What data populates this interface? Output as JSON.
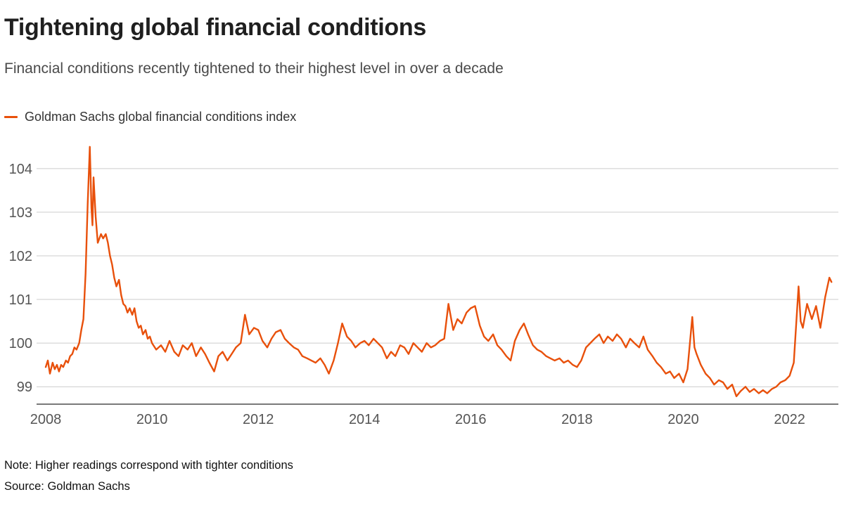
{
  "footer": {
    "note": "Note: Higher readings correspond with tighter conditions",
    "source": "Source: Goldman Sachs"
  },
  "chart_data": {
    "type": "line",
    "title": "Tightening global financial conditions",
    "subtitle": "Financial conditions recently tightened to their highest level in over a decade",
    "xlabel": "",
    "ylabel": "",
    "x_ticks": [
      2008,
      2010,
      2012,
      2014,
      2016,
      2018,
      2020,
      2022
    ],
    "y_ticks": [
      99,
      100,
      101,
      102,
      103,
      104
    ],
    "x_range": [
      2008,
      2022.8
    ],
    "y_range": [
      98.6,
      104.61
    ],
    "grid": "horizontal",
    "legend_position": "top-left",
    "colors": {
      "line": "#e8500b",
      "grid": "#cccccc",
      "tick": "#555555",
      "axis": "#4d4d4d"
    },
    "series": [
      {
        "name": "Goldman Sachs global financial conditions index",
        "color": "#e8500b",
        "points": [
          [
            2008.0,
            99.45
          ],
          [
            2008.04,
            99.6
          ],
          [
            2008.08,
            99.3
          ],
          [
            2008.13,
            99.55
          ],
          [
            2008.17,
            99.4
          ],
          [
            2008.21,
            99.5
          ],
          [
            2008.25,
            99.35
          ],
          [
            2008.29,
            99.5
          ],
          [
            2008.33,
            99.45
          ],
          [
            2008.38,
            99.6
          ],
          [
            2008.42,
            99.55
          ],
          [
            2008.46,
            99.7
          ],
          [
            2008.5,
            99.75
          ],
          [
            2008.54,
            99.9
          ],
          [
            2008.58,
            99.85
          ],
          [
            2008.63,
            100.0
          ],
          [
            2008.67,
            100.3
          ],
          [
            2008.71,
            100.55
          ],
          [
            2008.75,
            101.6
          ],
          [
            2008.79,
            103.2
          ],
          [
            2008.83,
            104.5
          ],
          [
            2008.86,
            103.1
          ],
          [
            2008.88,
            102.7
          ],
          [
            2008.9,
            103.8
          ],
          [
            2008.94,
            102.9
          ],
          [
            2008.98,
            102.3
          ],
          [
            2009.04,
            102.5
          ],
          [
            2009.08,
            102.4
          ],
          [
            2009.13,
            102.5
          ],
          [
            2009.17,
            102.3
          ],
          [
            2009.21,
            102.0
          ],
          [
            2009.25,
            101.8
          ],
          [
            2009.29,
            101.5
          ],
          [
            2009.33,
            101.3
          ],
          [
            2009.38,
            101.45
          ],
          [
            2009.42,
            101.1
          ],
          [
            2009.46,
            100.9
          ],
          [
            2009.5,
            100.85
          ],
          [
            2009.54,
            100.7
          ],
          [
            2009.58,
            100.8
          ],
          [
            2009.63,
            100.65
          ],
          [
            2009.67,
            100.8
          ],
          [
            2009.71,
            100.5
          ],
          [
            2009.75,
            100.35
          ],
          [
            2009.79,
            100.4
          ],
          [
            2009.83,
            100.2
          ],
          [
            2009.88,
            100.3
          ],
          [
            2009.92,
            100.1
          ],
          [
            2009.96,
            100.15
          ],
          [
            2010.0,
            100.0
          ],
          [
            2010.08,
            99.85
          ],
          [
            2010.17,
            99.95
          ],
          [
            2010.25,
            99.8
          ],
          [
            2010.33,
            100.05
          ],
          [
            2010.42,
            99.8
          ],
          [
            2010.5,
            99.7
          ],
          [
            2010.58,
            99.95
          ],
          [
            2010.67,
            99.85
          ],
          [
            2010.75,
            100.0
          ],
          [
            2010.83,
            99.7
          ],
          [
            2010.92,
            99.9
          ],
          [
            2011.0,
            99.75
          ],
          [
            2011.08,
            99.55
          ],
          [
            2011.17,
            99.35
          ],
          [
            2011.25,
            99.7
          ],
          [
            2011.33,
            99.8
          ],
          [
            2011.42,
            99.6
          ],
          [
            2011.5,
            99.75
          ],
          [
            2011.58,
            99.9
          ],
          [
            2011.67,
            100.0
          ],
          [
            2011.75,
            100.65
          ],
          [
            2011.83,
            100.2
          ],
          [
            2011.92,
            100.35
          ],
          [
            2012.0,
            100.3
          ],
          [
            2012.08,
            100.05
          ],
          [
            2012.17,
            99.9
          ],
          [
            2012.25,
            100.1
          ],
          [
            2012.33,
            100.25
          ],
          [
            2012.42,
            100.3
          ],
          [
            2012.5,
            100.1
          ],
          [
            2012.58,
            100.0
          ],
          [
            2012.67,
            99.9
          ],
          [
            2012.75,
            99.85
          ],
          [
            2012.83,
            99.7
          ],
          [
            2012.92,
            99.65
          ],
          [
            2013.0,
            99.6
          ],
          [
            2013.08,
            99.55
          ],
          [
            2013.17,
            99.65
          ],
          [
            2013.25,
            99.5
          ],
          [
            2013.33,
            99.3
          ],
          [
            2013.42,
            99.6
          ],
          [
            2013.5,
            100.0
          ],
          [
            2013.58,
            100.45
          ],
          [
            2013.67,
            100.15
          ],
          [
            2013.75,
            100.05
          ],
          [
            2013.83,
            99.9
          ],
          [
            2013.92,
            100.0
          ],
          [
            2014.0,
            100.05
          ],
          [
            2014.08,
            99.95
          ],
          [
            2014.17,
            100.1
          ],
          [
            2014.25,
            100.0
          ],
          [
            2014.33,
            99.9
          ],
          [
            2014.42,
            99.65
          ],
          [
            2014.5,
            99.8
          ],
          [
            2014.58,
            99.7
          ],
          [
            2014.67,
            99.95
          ],
          [
            2014.75,
            99.9
          ],
          [
            2014.83,
            99.75
          ],
          [
            2014.92,
            100.0
          ],
          [
            2015.0,
            99.9
          ],
          [
            2015.08,
            99.8
          ],
          [
            2015.17,
            100.0
          ],
          [
            2015.25,
            99.9
          ],
          [
            2015.33,
            99.95
          ],
          [
            2015.42,
            100.05
          ],
          [
            2015.5,
            100.1
          ],
          [
            2015.58,
            100.9
          ],
          [
            2015.67,
            100.3
          ],
          [
            2015.75,
            100.55
          ],
          [
            2015.83,
            100.45
          ],
          [
            2015.92,
            100.7
          ],
          [
            2016.0,
            100.8
          ],
          [
            2016.08,
            100.85
          ],
          [
            2016.17,
            100.4
          ],
          [
            2016.25,
            100.15
          ],
          [
            2016.33,
            100.05
          ],
          [
            2016.42,
            100.2
          ],
          [
            2016.5,
            99.95
          ],
          [
            2016.58,
            99.85
          ],
          [
            2016.67,
            99.7
          ],
          [
            2016.75,
            99.6
          ],
          [
            2016.83,
            100.05
          ],
          [
            2016.92,
            100.3
          ],
          [
            2017.0,
            100.45
          ],
          [
            2017.08,
            100.2
          ],
          [
            2017.17,
            99.95
          ],
          [
            2017.25,
            99.85
          ],
          [
            2017.33,
            99.8
          ],
          [
            2017.42,
            99.7
          ],
          [
            2017.5,
            99.65
          ],
          [
            2017.58,
            99.6
          ],
          [
            2017.67,
            99.65
          ],
          [
            2017.75,
            99.55
          ],
          [
            2017.83,
            99.6
          ],
          [
            2017.92,
            99.5
          ],
          [
            2018.0,
            99.45
          ],
          [
            2018.08,
            99.6
          ],
          [
            2018.17,
            99.9
          ],
          [
            2018.25,
            100.0
          ],
          [
            2018.33,
            100.1
          ],
          [
            2018.42,
            100.2
          ],
          [
            2018.5,
            100.0
          ],
          [
            2018.58,
            100.15
          ],
          [
            2018.67,
            100.05
          ],
          [
            2018.75,
            100.2
          ],
          [
            2018.83,
            100.1
          ],
          [
            2018.92,
            99.9
          ],
          [
            2019.0,
            100.1
          ],
          [
            2019.08,
            100.0
          ],
          [
            2019.17,
            99.9
          ],
          [
            2019.25,
            100.15
          ],
          [
            2019.33,
            99.85
          ],
          [
            2019.42,
            99.7
          ],
          [
            2019.5,
            99.55
          ],
          [
            2019.58,
            99.45
          ],
          [
            2019.67,
            99.3
          ],
          [
            2019.75,
            99.35
          ],
          [
            2019.83,
            99.2
          ],
          [
            2019.92,
            99.3
          ],
          [
            2020.0,
            99.1
          ],
          [
            2020.08,
            99.4
          ],
          [
            2020.17,
            100.6
          ],
          [
            2020.21,
            99.9
          ],
          [
            2020.25,
            99.75
          ],
          [
            2020.33,
            99.5
          ],
          [
            2020.42,
            99.3
          ],
          [
            2020.5,
            99.2
          ],
          [
            2020.58,
            99.05
          ],
          [
            2020.67,
            99.15
          ],
          [
            2020.75,
            99.1
          ],
          [
            2020.83,
            98.95
          ],
          [
            2020.92,
            99.05
          ],
          [
            2021.0,
            98.78
          ],
          [
            2021.08,
            98.9
          ],
          [
            2021.17,
            99.0
          ],
          [
            2021.25,
            98.88
          ],
          [
            2021.33,
            98.95
          ],
          [
            2021.42,
            98.85
          ],
          [
            2021.5,
            98.92
          ],
          [
            2021.58,
            98.85
          ],
          [
            2021.67,
            98.95
          ],
          [
            2021.75,
            99.0
          ],
          [
            2021.83,
            99.1
          ],
          [
            2021.92,
            99.15
          ],
          [
            2022.0,
            99.25
          ],
          [
            2022.08,
            99.55
          ],
          [
            2022.17,
            101.3
          ],
          [
            2022.21,
            100.5
          ],
          [
            2022.25,
            100.35
          ],
          [
            2022.33,
            100.9
          ],
          [
            2022.42,
            100.55
          ],
          [
            2022.5,
            100.85
          ],
          [
            2022.58,
            100.35
          ],
          [
            2022.67,
            101.05
          ],
          [
            2022.75,
            101.5
          ],
          [
            2022.79,
            101.4
          ]
        ]
      }
    ]
  }
}
